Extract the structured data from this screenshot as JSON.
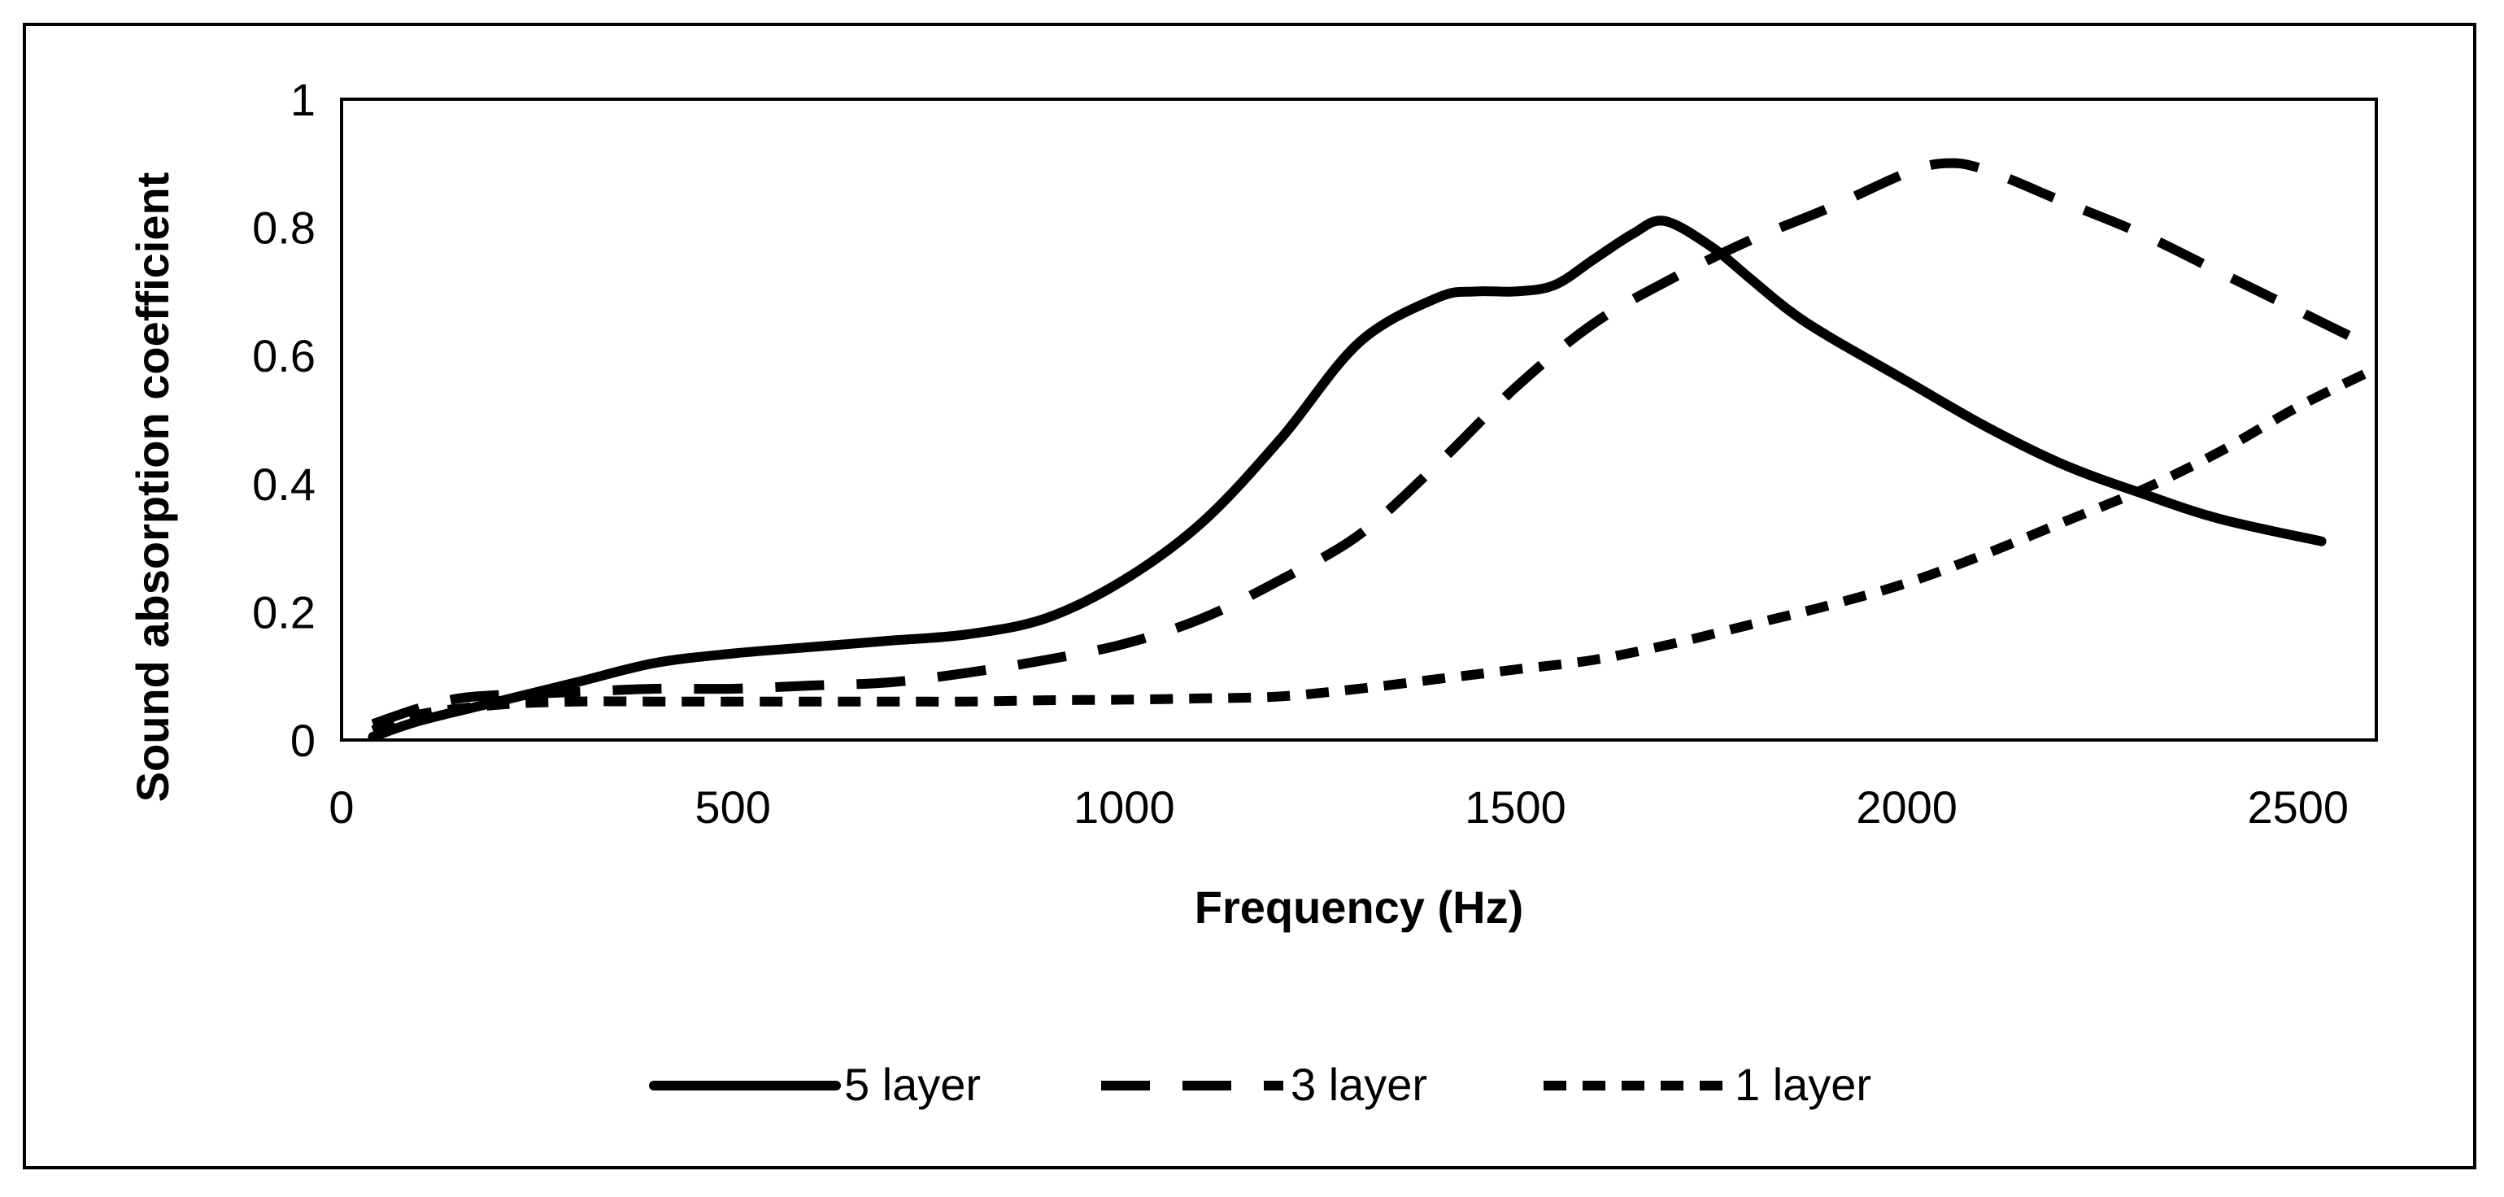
{
  "chart_data": {
    "type": "line",
    "xlabel": "Frequency (Hz)",
    "ylabel": "Sound absorption coefficient",
    "xlim": [
      0,
      2600
    ],
    "ylim": [
      0,
      1
    ],
    "x_ticks": [
      0,
      500,
      1000,
      1500,
      2000,
      2500
    ],
    "x_tick_labels": [
      "0",
      "500",
      "1000",
      "1500",
      "2000",
      "2500"
    ],
    "y_ticks": [
      0,
      0.2,
      0.4,
      0.6,
      0.8,
      1
    ],
    "y_tick_labels": [
      "0",
      "0.2",
      "0.4",
      "0.6",
      "0.8",
      "1"
    ],
    "grid": false,
    "legend_position": "bottom",
    "series": [
      {
        "name": "5 layer",
        "style": "solid",
        "color": "#000000",
        "x": [
          40,
          100,
          200,
          300,
          400,
          500,
          600,
          700,
          800,
          900,
          1000,
          1100,
          1200,
          1300,
          1400,
          1450,
          1500,
          1550,
          1600,
          1650,
          1690,
          1750,
          1800,
          1850,
          1900,
          2000,
          2100,
          2200,
          2300,
          2400,
          2530
        ],
        "values": [
          0.005,
          0.03,
          0.06,
          0.09,
          0.12,
          0.135,
          0.145,
          0.155,
          0.165,
          0.19,
          0.25,
          0.34,
          0.47,
          0.62,
          0.69,
          0.7,
          0.7,
          0.71,
          0.75,
          0.79,
          0.81,
          0.77,
          0.72,
          0.67,
          0.63,
          0.56,
          0.49,
          0.43,
          0.385,
          0.345,
          0.31
        ]
      },
      {
        "name": "3 layer",
        "style": "long-dash",
        "color": "#000000",
        "x": [
          40,
          100,
          150,
          200,
          300,
          400,
          500,
          600,
          700,
          800,
          900,
          1000,
          1100,
          1200,
          1300,
          1400,
          1500,
          1600,
          1700,
          1800,
          1900,
          2000,
          2050,
          2100,
          2200,
          2300,
          2400,
          2500,
          2600
        ],
        "values": [
          0.025,
          0.05,
          0.065,
          0.07,
          0.075,
          0.08,
          0.08,
          0.085,
          0.09,
          0.105,
          0.125,
          0.15,
          0.19,
          0.25,
          0.32,
          0.43,
          0.55,
          0.65,
          0.72,
          0.78,
          0.83,
          0.885,
          0.9,
          0.89,
          0.84,
          0.79,
          0.73,
          0.67,
          0.61
        ]
      },
      {
        "name": "1 layer",
        "style": "short-dash",
        "color": "#000000",
        "x": [
          40,
          100,
          200,
          300,
          400,
          500,
          600,
          700,
          800,
          900,
          1000,
          1100,
          1200,
          1300,
          1400,
          1500,
          1600,
          1700,
          1800,
          1900,
          2000,
          2100,
          2200,
          2300,
          2400,
          2500,
          2600
        ],
        "values": [
          0.015,
          0.04,
          0.055,
          0.06,
          0.06,
          0.06,
          0.06,
          0.06,
          0.06,
          0.062,
          0.063,
          0.065,
          0.068,
          0.08,
          0.095,
          0.11,
          0.125,
          0.15,
          0.18,
          0.21,
          0.245,
          0.29,
          0.34,
          0.39,
          0.45,
          0.52,
          0.58
        ]
      }
    ]
  }
}
